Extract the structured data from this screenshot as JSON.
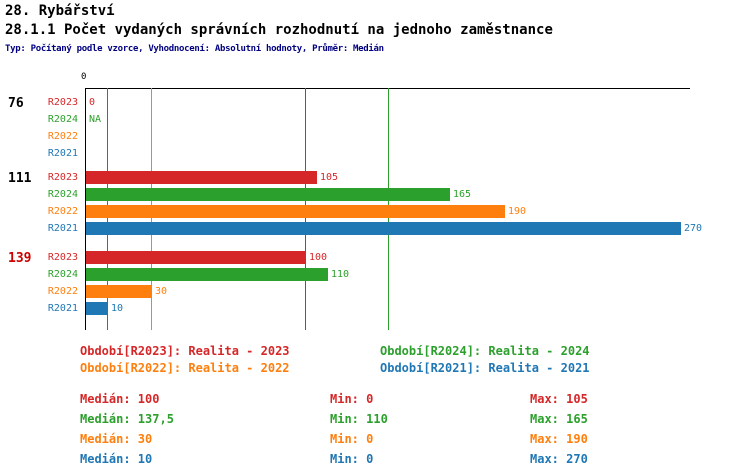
{
  "header": {
    "title": "28. Rybářství",
    "subtitle": "28.1.1 Počet vydaných správních rozhodnutí na jednoho zaměstnance",
    "meta": "Typ: Počítaný podle vzorce, Vyhodnocení: Absolutní hodnoty, Průměr: Medián"
  },
  "colors": {
    "r2023": "#d62728",
    "r2024": "#2ca02c",
    "r2022": "#ff7f0e",
    "r2021": "#1f77b4",
    "meta_text": "#000080",
    "axis": "#000000",
    "group_label_default": "#000000",
    "group_label_highlight": "#cc0000"
  },
  "chart_data": {
    "type": "bar",
    "orientation": "horizontal",
    "title": "28.1.1 Počet vydaných správních rozhodnutí na jednoho zaměstnance",
    "xlim": [
      0,
      270
    ],
    "axis_tick_label": "0",
    "grid": false,
    "series": [
      {
        "label": "R2023",
        "name": "Realita - 2023",
        "color": "#d62728"
      },
      {
        "label": "R2024",
        "name": "Realita - 2024",
        "color": "#2ca02c"
      },
      {
        "label": "R2022",
        "name": "Realita - 2022",
        "color": "#ff7f0e"
      },
      {
        "label": "R2021",
        "name": "Realita - 2021",
        "color": "#1f77b4"
      }
    ],
    "groups": [
      {
        "label": "76",
        "label_color": "#000000",
        "values": [
          0,
          null,
          0,
          0
        ],
        "value_labels": [
          "0",
          "NA",
          "",
          ""
        ]
      },
      {
        "label": "111",
        "label_color": "#000000",
        "values": [
          105,
          165,
          190,
          270
        ],
        "value_labels": [
          "105",
          "165",
          "190",
          "270"
        ]
      },
      {
        "label": "139",
        "label_color": "#cc0000",
        "values": [
          100,
          110,
          30,
          10
        ],
        "value_labels": [
          "100",
          "110",
          "30",
          "10"
        ]
      }
    ],
    "median_lines": [
      {
        "series": "R2023",
        "value": 100,
        "color": "#d62728"
      },
      {
        "series": "R2024",
        "value": 137.5,
        "color": "#2ca02c"
      },
      {
        "series": "R2022",
        "value": 30,
        "color": "#ff7f0e"
      },
      {
        "series": "R2021",
        "value": 10,
        "color": "#1f77b4"
      }
    ]
  },
  "legend": [
    {
      "series": "R2023",
      "label": "Období[R2023]: Realita - 2023",
      "color": "#d62728"
    },
    {
      "series": "R2024",
      "label": "Období[R2024]: Realita - 2024",
      "color": "#2ca02c"
    },
    {
      "series": "R2022",
      "label": "Období[R2022]: Realita - 2022",
      "color": "#ff7f0e"
    },
    {
      "series": "R2021",
      "label": "Období[R2021]: Realita - 2021",
      "color": "#1f77b4"
    }
  ],
  "stats": [
    {
      "series": "R2023",
      "color": "#d62728",
      "median": "Medián: 100",
      "min": "Min: 0",
      "max": "Max: 105"
    },
    {
      "series": "R2024",
      "color": "#2ca02c",
      "median": "Medián: 137,5",
      "min": "Min: 110",
      "max": "Max: 165"
    },
    {
      "series": "R2022",
      "color": "#ff7f0e",
      "median": "Medián: 30",
      "min": "Min: 0",
      "max": "Max: 190"
    },
    {
      "series": "R2021",
      "color": "#1f77b4",
      "median": "Medián: 10",
      "min": "Min: 0",
      "max": "Max: 270"
    }
  ]
}
